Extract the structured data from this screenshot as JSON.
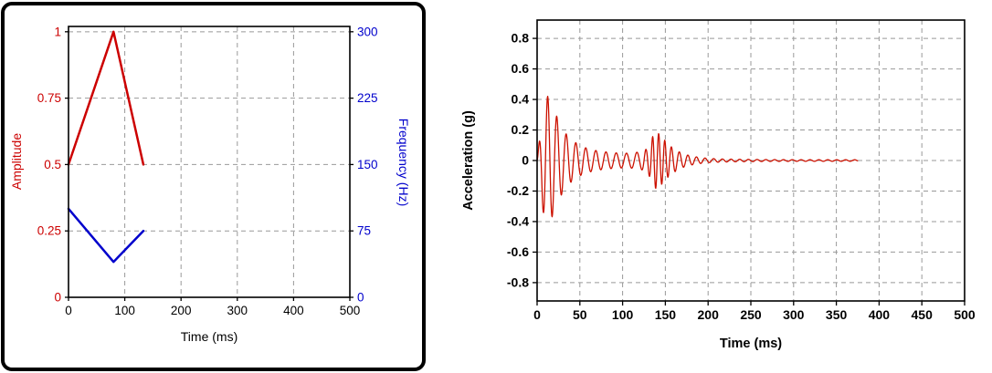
{
  "page": {
    "background": "#ffffff",
    "frame_color": "#000000",
    "grid_color": "#999999"
  },
  "chart_data": [
    {
      "id": "excitation-profile",
      "type": "line",
      "title": "",
      "xlabel": "Time (ms)",
      "xlim": [
        0,
        500
      ],
      "xticks": [
        0,
        100,
        200,
        300,
        400,
        500
      ],
      "xtick_labels": [
        "0",
        "100",
        "200",
        "300",
        "400",
        "500"
      ],
      "grid": true,
      "legend": "none",
      "y_left": {
        "label": "Amplitude",
        "color": "#cc0000",
        "lim": [
          0,
          1.02
        ],
        "ticks": [
          0,
          0.25,
          0.5,
          0.75,
          1
        ],
        "tick_labels": [
          "0",
          "0.25",
          "0.5",
          "0.75",
          "1"
        ]
      },
      "y_right": {
        "label": "Frequency (Hz)",
        "color": "#0000cc",
        "lim": [
          0,
          306
        ],
        "ticks": [
          0,
          75,
          150,
          225,
          300
        ],
        "tick_labels": [
          "0",
          "75",
          "150",
          "225",
          "300"
        ]
      },
      "series": [
        {
          "name": "amplitude-sweep",
          "axis": "left",
          "color": "#cc0000",
          "points": [
            [
              0,
              0.5
            ],
            [
              80,
              1.0
            ],
            [
              133,
              0.5
            ]
          ]
        },
        {
          "name": "frequency-sweep",
          "axis": "right",
          "color": "#0000cc",
          "points": [
            [
              0,
              100
            ],
            [
              80,
              40
            ],
            [
              133,
              75
            ]
          ]
        }
      ]
    },
    {
      "id": "acceleration-response",
      "type": "line",
      "title": "",
      "xlabel": "Time (ms)",
      "xlim": [
        0,
        500
      ],
      "xticks": [
        0,
        50,
        100,
        150,
        200,
        250,
        300,
        350,
        400,
        450,
        500
      ],
      "xtick_labels": [
        "0",
        "50",
        "100",
        "150",
        "200",
        "250",
        "300",
        "350",
        "400",
        "450",
        "500"
      ],
      "ylabel": "Acceleration (g)",
      "ylim": [
        -0.92,
        0.92
      ],
      "yticks": [
        -0.8,
        -0.6,
        -0.4,
        -0.2,
        0,
        0.2,
        0.4,
        0.6,
        0.8
      ],
      "ytick_labels": [
        "-0.8",
        "-0.6",
        "-0.4",
        "-0.2",
        "0",
        "0.2",
        "0.4",
        "0.6",
        "0.8"
      ],
      "grid": true,
      "legend": "none",
      "series": [
        {
          "name": "acceleration",
          "color": "#cc1100",
          "signal": {
            "t_end": 375,
            "dt": 0.4,
            "envelope": [
              [
                0,
                0
              ],
              [
                3,
                0.15
              ],
              [
                6,
                0.3
              ],
              [
                10,
                0.43
              ],
              [
                15,
                0.41
              ],
              [
                20,
                0.33
              ],
              [
                26,
                0.25
              ],
              [
                33,
                0.18
              ],
              [
                40,
                0.14
              ],
              [
                48,
                0.105
              ],
              [
                56,
                0.085
              ],
              [
                66,
                0.068
              ],
              [
                78,
                0.058
              ],
              [
                92,
                0.05
              ],
              [
                105,
                0.048
              ],
              [
                115,
                0.052
              ],
              [
                122,
                0.06
              ],
              [
                128,
                0.075
              ],
              [
                132,
                0.11
              ],
              [
                136,
                0.17
              ],
              [
                140,
                0.19
              ],
              [
                146,
                0.155
              ],
              [
                152,
                0.115
              ],
              [
                158,
                0.085
              ],
              [
                165,
                0.06
              ],
              [
                172,
                0.042
              ],
              [
                180,
                0.03
              ],
              [
                190,
                0.02
              ],
              [
                200,
                0.014
              ],
              [
                215,
                0.01
              ],
              [
                235,
                0.008
              ],
              [
                270,
                0.006
              ],
              [
                320,
                0.005
              ],
              [
                375,
                0.005
              ]
            ],
            "freq_hz": [
              [
                0,
                100
              ],
              [
                30,
                90
              ],
              [
                60,
                85
              ],
              [
                120,
                82
              ],
              [
                128,
                120
              ],
              [
                136,
                140
              ],
              [
                150,
                140
              ],
              [
                158,
                115
              ],
              [
                166,
                100
              ],
              [
                375,
                95
              ]
            ]
          }
        }
      ]
    }
  ]
}
